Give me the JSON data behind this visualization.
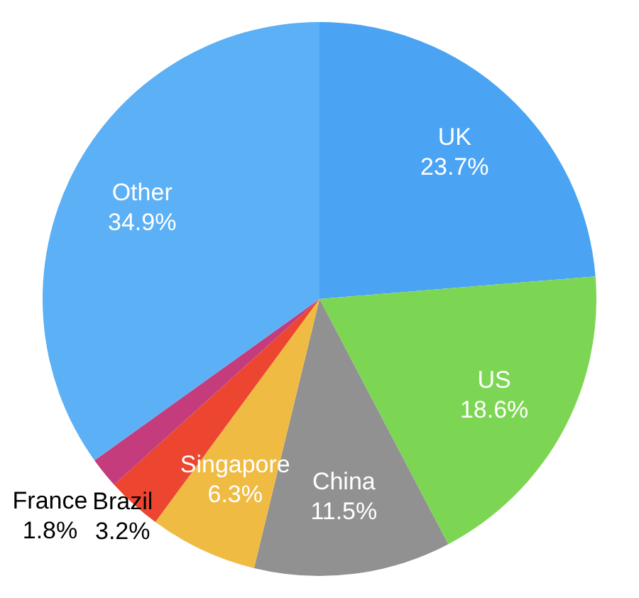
{
  "chart_data": {
    "type": "pie",
    "categories": [
      "UK",
      "US",
      "China",
      "Singapore",
      "Brazil",
      "France",
      "Other"
    ],
    "values": [
      23.7,
      18.6,
      11.5,
      6.3,
      3.2,
      1.8,
      34.9
    ],
    "value_labels": [
      "23.7%",
      "18.6%",
      "11.5%",
      "6.3%",
      "3.2%",
      "1.8%",
      "34.9%"
    ],
    "colors": [
      "#4aa3f3",
      "#7dd653",
      "#919191",
      "#f0bb42",
      "#ec4631",
      "#c53c7c",
      "#5cb0f5"
    ],
    "legend": false
  }
}
